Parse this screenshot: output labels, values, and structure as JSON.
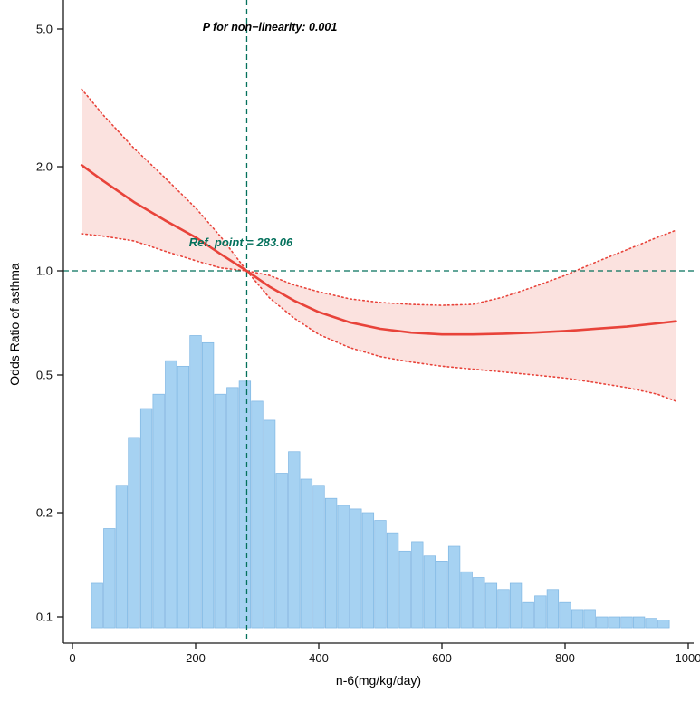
{
  "chart_data": {
    "type": "line",
    "title": "",
    "xlabel": "n-6(mg/kg/day)",
    "ylabel": "Odds Ratio of asthma",
    "y_scale": "log10",
    "x_ticks": [
      0,
      200,
      400,
      600,
      800,
      1000
    ],
    "x_tick_labels": [
      "0",
      "200",
      "400",
      "600",
      "800",
      "1000"
    ],
    "y_ticks": [
      5.0,
      2.0,
      1.0,
      0.5,
      0.2,
      0.1
    ],
    "y_tick_labels": [
      "5.0",
      "2.0",
      "1.0",
      "0.5",
      "0.2",
      "0.1"
    ],
    "xlim": [
      -20,
      1040
    ],
    "ylim": [
      0.09,
      5.6
    ],
    "grid": false,
    "legend": "none",
    "ref_point": 283.06,
    "ref_odds_ratio": 1.0,
    "annotations": {
      "p_nonlinearity": "P for non−linearity: 0.001",
      "ref_point": "Ref. point = 283.06"
    },
    "series": [
      {
        "name": "odds-ratio-spline",
        "x": [
          15,
          50,
          100,
          150,
          200,
          240,
          283,
          320,
          360,
          400,
          450,
          500,
          550,
          600,
          650,
          700,
          750,
          800,
          850,
          900,
          950,
          980
        ],
        "or": [
          2.02,
          1.82,
          1.58,
          1.4,
          1.25,
          1.12,
          1.0,
          0.9,
          0.82,
          0.76,
          0.71,
          0.68,
          0.663,
          0.655,
          0.655,
          0.658,
          0.663,
          0.67,
          0.68,
          0.69,
          0.705,
          0.715
        ],
        "upper_ci": [
          3.35,
          2.82,
          2.26,
          1.86,
          1.52,
          1.26,
          1.0,
          0.97,
          0.91,
          0.87,
          0.83,
          0.81,
          0.8,
          0.795,
          0.8,
          0.84,
          0.9,
          0.97,
          1.06,
          1.15,
          1.25,
          1.31
        ],
        "lower_ci": [
          1.28,
          1.26,
          1.22,
          1.14,
          1.07,
          1.02,
          1.0,
          0.835,
          0.73,
          0.655,
          0.6,
          0.565,
          0.545,
          0.53,
          0.52,
          0.51,
          0.5,
          0.49,
          0.475,
          0.46,
          0.44,
          0.42
        ]
      }
    ],
    "histogram": {
      "name": "n6-intake-distribution",
      "bin_width": 20,
      "baseline_or": 0.093,
      "centers": [
        40,
        60,
        80,
        100,
        120,
        140,
        160,
        180,
        200,
        220,
        240,
        260,
        280,
        300,
        320,
        340,
        360,
        380,
        400,
        420,
        440,
        460,
        480,
        500,
        520,
        540,
        560,
        580,
        600,
        620,
        640,
        660,
        680,
        700,
        720,
        740,
        760,
        780,
        800,
        820,
        840,
        860,
        880,
        900,
        920,
        940,
        960
      ],
      "tops_or": [
        0.125,
        0.18,
        0.24,
        0.33,
        0.4,
        0.44,
        0.55,
        0.53,
        0.65,
        0.62,
        0.44,
        0.46,
        0.48,
        0.42,
        0.37,
        0.26,
        0.3,
        0.25,
        0.24,
        0.22,
        0.21,
        0.205,
        0.2,
        0.19,
        0.175,
        0.155,
        0.165,
        0.15,
        0.145,
        0.16,
        0.135,
        0.13,
        0.125,
        0.12,
        0.125,
        0.11,
        0.115,
        0.12,
        0.11,
        0.105,
        0.105,
        0.1,
        0.1,
        0.1,
        0.1,
        0.099,
        0.098
      ]
    },
    "colors": {
      "curve": "#e8433a",
      "band_fill": "#fadbd7",
      "band_edge": "#e8433a",
      "histogram_fill": "#a6d2f2",
      "histogram_stroke": "#7fb6e3",
      "ref_line": "#04715c",
      "axis": "#1a1a1a",
      "annotation_p": "#000000"
    }
  }
}
